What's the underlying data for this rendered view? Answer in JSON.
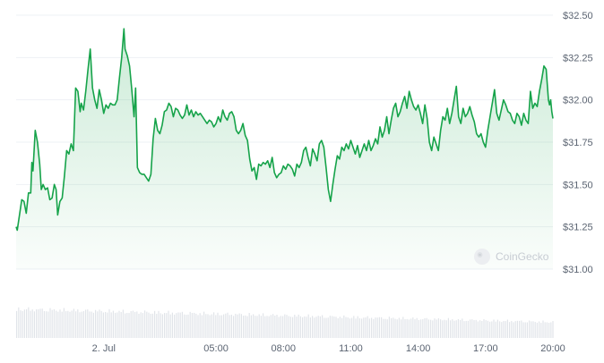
{
  "watermark": "CoinGecko",
  "colors": {
    "line": "#16a34a",
    "fill_top": "#16a34a",
    "grid": "#eef1f4",
    "volume": "#e1e4e9",
    "text": "#5b6472"
  },
  "chart_data": {
    "type": "area",
    "title": "",
    "xlabel": "",
    "ylabel": "",
    "grid": true,
    "ylim": [
      31.0,
      32.5
    ],
    "y_ticks": [
      "$32.50",
      "$32.25",
      "$32.00",
      "$31.75",
      "$31.50",
      "$31.25",
      "$31.00"
    ],
    "x_ticks": [
      "2. Jul",
      "05:00",
      "08:00",
      "11:00",
      "14:00",
      "17:00",
      "20:00"
    ],
    "x_tick_hours": [
      0,
      5,
      8,
      11,
      14,
      17,
      20
    ],
    "x_range_hours": [
      -3.9,
      20.0
    ],
    "series": [
      {
        "values": [
          [
            -3.9,
            31.25
          ],
          [
            -3.85,
            31.23
          ],
          [
            -3.75,
            31.32
          ],
          [
            -3.65,
            31.41
          ],
          [
            -3.55,
            31.4
          ],
          [
            -3.45,
            31.33
          ],
          [
            -3.35,
            31.45
          ],
          [
            -3.25,
            31.45
          ],
          [
            -3.2,
            31.63
          ],
          [
            -3.15,
            31.58
          ],
          [
            -3.05,
            31.82
          ],
          [
            -2.95,
            31.75
          ],
          [
            -2.85,
            31.62
          ],
          [
            -2.78,
            31.47
          ],
          [
            -2.7,
            31.5
          ],
          [
            -2.6,
            31.47
          ],
          [
            -2.5,
            31.48
          ],
          [
            -2.4,
            31.41
          ],
          [
            -2.3,
            31.42
          ],
          [
            -2.2,
            31.5
          ],
          [
            -2.12,
            31.47
          ],
          [
            -2.05,
            31.32
          ],
          [
            -1.95,
            31.4
          ],
          [
            -1.85,
            31.42
          ],
          [
            -1.75,
            31.55
          ],
          [
            -1.65,
            31.7
          ],
          [
            -1.55,
            31.68
          ],
          [
            -1.45,
            31.74
          ],
          [
            -1.35,
            31.7
          ],
          [
            -1.25,
            32.07
          ],
          [
            -1.15,
            32.05
          ],
          [
            -1.05,
            31.93
          ],
          [
            -1.0,
            31.98
          ],
          [
            -0.9,
            31.94
          ],
          [
            -0.8,
            32.05
          ],
          [
            -0.7,
            32.18
          ],
          [
            -0.6,
            32.3
          ],
          [
            -0.5,
            32.07
          ],
          [
            -0.4,
            32.0
          ],
          [
            -0.3,
            31.95
          ],
          [
            -0.2,
            32.06
          ],
          [
            -0.1,
            32.0
          ],
          [
            0.0,
            31.92
          ],
          [
            0.1,
            31.97
          ],
          [
            0.2,
            31.95
          ],
          [
            0.3,
            31.98
          ],
          [
            0.4,
            31.97
          ],
          [
            0.5,
            31.97
          ],
          [
            0.6,
            32.0
          ],
          [
            0.7,
            32.13
          ],
          [
            0.8,
            32.25
          ],
          [
            0.9,
            32.42
          ],
          [
            0.95,
            32.3
          ],
          [
            1.05,
            32.26
          ],
          [
            1.15,
            32.2
          ],
          [
            1.25,
            32.06
          ],
          [
            1.35,
            31.9
          ],
          [
            1.42,
            32.07
          ],
          [
            1.5,
            31.6
          ],
          [
            1.6,
            31.57
          ],
          [
            1.7,
            31.56
          ],
          [
            1.8,
            31.56
          ],
          [
            1.9,
            31.54
          ],
          [
            2.0,
            31.52
          ],
          [
            2.1,
            31.56
          ],
          [
            2.2,
            31.77
          ],
          [
            2.3,
            31.89
          ],
          [
            2.4,
            31.82
          ],
          [
            2.5,
            31.8
          ],
          [
            2.6,
            31.85
          ],
          [
            2.7,
            31.93
          ],
          [
            2.8,
            31.94
          ],
          [
            2.9,
            31.98
          ],
          [
            3.0,
            31.96
          ],
          [
            3.1,
            31.9
          ],
          [
            3.2,
            31.95
          ],
          [
            3.3,
            31.94
          ],
          [
            3.4,
            31.91
          ],
          [
            3.5,
            31.89
          ],
          [
            3.6,
            31.91
          ],
          [
            3.7,
            31.97
          ],
          [
            3.8,
            31.91
          ],
          [
            3.9,
            31.94
          ],
          [
            4.0,
            31.9
          ],
          [
            4.1,
            31.93
          ],
          [
            4.2,
            31.91
          ],
          [
            4.3,
            31.92
          ],
          [
            4.4,
            31.9
          ],
          [
            4.5,
            31.88
          ],
          [
            4.6,
            31.86
          ],
          [
            4.7,
            31.88
          ],
          [
            4.8,
            31.87
          ],
          [
            4.9,
            31.84
          ],
          [
            5.0,
            31.86
          ],
          [
            5.1,
            31.9
          ],
          [
            5.2,
            31.87
          ],
          [
            5.3,
            31.94
          ],
          [
            5.4,
            31.9
          ],
          [
            5.5,
            31.88
          ],
          [
            5.6,
            31.92
          ],
          [
            5.7,
            31.93
          ],
          [
            5.8,
            31.9
          ],
          [
            5.9,
            31.82
          ],
          [
            6.0,
            31.8
          ],
          [
            6.1,
            31.82
          ],
          [
            6.2,
            31.86
          ],
          [
            6.3,
            31.79
          ],
          [
            6.4,
            31.76
          ],
          [
            6.5,
            31.65
          ],
          [
            6.6,
            31.58
          ],
          [
            6.7,
            31.6
          ],
          [
            6.8,
            31.53
          ],
          [
            6.9,
            31.62
          ],
          [
            7.0,
            31.61
          ],
          [
            7.1,
            31.63
          ],
          [
            7.2,
            31.62
          ],
          [
            7.3,
            31.64
          ],
          [
            7.4,
            31.6
          ],
          [
            7.5,
            31.66
          ],
          [
            7.6,
            31.57
          ],
          [
            7.7,
            31.54
          ],
          [
            7.8,
            31.56
          ],
          [
            7.9,
            31.57
          ],
          [
            8.0,
            31.61
          ],
          [
            8.1,
            31.59
          ],
          [
            8.2,
            31.62
          ],
          [
            8.3,
            31.61
          ],
          [
            8.4,
            31.59
          ],
          [
            8.5,
            31.55
          ],
          [
            8.6,
            31.62
          ],
          [
            8.7,
            31.6
          ],
          [
            8.8,
            31.63
          ],
          [
            8.9,
            31.7
          ],
          [
            9.0,
            31.72
          ],
          [
            9.1,
            31.66
          ],
          [
            9.2,
            31.61
          ],
          [
            9.3,
            31.71
          ],
          [
            9.4,
            31.68
          ],
          [
            9.5,
            31.64
          ],
          [
            9.6,
            31.74
          ],
          [
            9.7,
            31.76
          ],
          [
            9.8,
            31.72
          ],
          [
            9.9,
            31.6
          ],
          [
            10.0,
            31.47
          ],
          [
            10.1,
            31.4
          ],
          [
            10.2,
            31.5
          ],
          [
            10.3,
            31.59
          ],
          [
            10.4,
            31.67
          ],
          [
            10.5,
            31.65
          ],
          [
            10.6,
            31.72
          ],
          [
            10.7,
            31.7
          ],
          [
            10.8,
            31.74
          ],
          [
            10.9,
            31.71
          ],
          [
            11.0,
            31.76
          ],
          [
            11.1,
            31.72
          ],
          [
            11.2,
            31.68
          ],
          [
            11.3,
            31.73
          ],
          [
            11.4,
            31.66
          ],
          [
            11.5,
            31.7
          ],
          [
            11.6,
            31.74
          ],
          [
            11.7,
            31.7
          ],
          [
            11.8,
            31.76
          ],
          [
            11.9,
            31.7
          ],
          [
            12.0,
            31.73
          ],
          [
            12.1,
            31.77
          ],
          [
            12.2,
            31.74
          ],
          [
            12.3,
            31.84
          ],
          [
            12.4,
            31.78
          ],
          [
            12.5,
            31.82
          ],
          [
            12.6,
            31.9
          ],
          [
            12.7,
            31.8
          ],
          [
            12.8,
            31.88
          ],
          [
            12.9,
            31.95
          ],
          [
            13.0,
            31.98
          ],
          [
            13.1,
            31.9
          ],
          [
            13.2,
            31.93
          ],
          [
            13.3,
            31.98
          ],
          [
            13.4,
            32.02
          ],
          [
            13.5,
            31.95
          ],
          [
            13.6,
            32.05
          ],
          [
            13.7,
            32.0
          ],
          [
            13.8,
            31.96
          ],
          [
            13.9,
            31.94
          ],
          [
            14.0,
            31.97
          ],
          [
            14.1,
            31.92
          ],
          [
            14.2,
            31.86
          ],
          [
            14.3,
            31.97
          ],
          [
            14.4,
            31.89
          ],
          [
            14.5,
            31.75
          ],
          [
            14.6,
            31.7
          ],
          [
            14.7,
            31.78
          ],
          [
            14.8,
            31.74
          ],
          [
            14.9,
            31.7
          ],
          [
            15.0,
            31.82
          ],
          [
            15.1,
            31.9
          ],
          [
            15.2,
            31.88
          ],
          [
            15.3,
            31.95
          ],
          [
            15.4,
            31.86
          ],
          [
            15.5,
            31.92
          ],
          [
            15.6,
            32.0
          ],
          [
            15.7,
            32.08
          ],
          [
            15.8,
            31.9
          ],
          [
            15.9,
            31.86
          ],
          [
            16.0,
            31.95
          ],
          [
            16.1,
            31.9
          ],
          [
            16.2,
            31.92
          ],
          [
            16.3,
            31.96
          ],
          [
            16.4,
            31.91
          ],
          [
            16.5,
            31.87
          ],
          [
            16.6,
            31.8
          ],
          [
            16.7,
            31.78
          ],
          [
            16.8,
            31.8
          ],
          [
            16.9,
            31.75
          ],
          [
            17.0,
            31.72
          ],
          [
            17.1,
            31.82
          ],
          [
            17.2,
            31.9
          ],
          [
            17.3,
            31.98
          ],
          [
            17.4,
            32.06
          ],
          [
            17.5,
            31.92
          ],
          [
            17.6,
            31.88
          ],
          [
            17.7,
            31.94
          ],
          [
            17.8,
            32.0
          ],
          [
            17.9,
            31.97
          ],
          [
            18.0,
            31.93
          ],
          [
            18.1,
            31.92
          ],
          [
            18.2,
            31.88
          ],
          [
            18.3,
            31.86
          ],
          [
            18.4,
            31.92
          ],
          [
            18.5,
            31.9
          ],
          [
            18.6,
            31.85
          ],
          [
            18.7,
            31.92
          ],
          [
            18.8,
            31.88
          ],
          [
            18.9,
            31.86
          ],
          [
            19.0,
            32.05
          ],
          [
            19.1,
            31.95
          ],
          [
            19.2,
            31.98
          ],
          [
            19.3,
            31.96
          ],
          [
            19.4,
            32.05
          ],
          [
            19.5,
            32.12
          ],
          [
            19.6,
            32.2
          ],
          [
            19.7,
            32.18
          ],
          [
            19.8,
            32.0
          ],
          [
            19.85,
            31.97
          ],
          [
            19.9,
            32.0
          ],
          [
            19.95,
            31.93
          ],
          [
            20.0,
            31.89
          ]
        ]
      }
    ],
    "volume": {
      "shown": true,
      "labeled": false
    }
  }
}
